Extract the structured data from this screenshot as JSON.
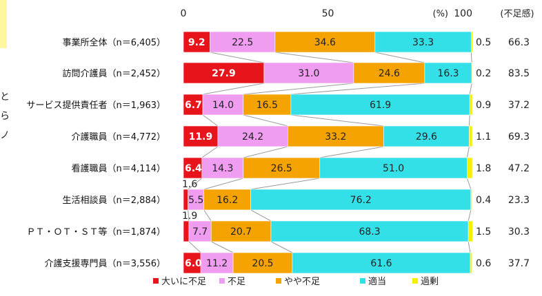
{
  "chart_data": {
    "type": "bar",
    "stacked": true,
    "orientation": "horizontal",
    "axis": {
      "ticks": [
        "0",
        "50",
        "100"
      ],
      "unit": "(%)",
      "range": [
        0,
        100
      ]
    },
    "extra_column_header": "(不足感)",
    "categories": [
      "事業所全体（n＝6,405）",
      "訪問介護員（n＝2,452）",
      "サービス提供責任者（n＝1,963）",
      "介護職員（n＝4,772）",
      "看護職員（n＝4,114）",
      "生活相談員（n＝2,884）",
      "ＰＴ・ＯＴ・ＳＴ等（n＝1,874）",
      "介護支援専門員（n＝3,556）"
    ],
    "series": [
      {
        "name": "大いに不足",
        "color": "#e8141c",
        "values": [
          9.2,
          27.9,
          6.7,
          11.9,
          6.4,
          1.6,
          1.9,
          6.0
        ]
      },
      {
        "name": "不足",
        "color": "#f09cf0",
        "values": [
          22.5,
          31.0,
          14.0,
          24.2,
          14.3,
          5.5,
          7.7,
          11.2
        ]
      },
      {
        "name": "やや不足",
        "color": "#f5a300",
        "values": [
          34.6,
          24.6,
          16.5,
          33.2,
          26.5,
          16.2,
          20.7,
          20.5
        ]
      },
      {
        "name": "適当",
        "color": "#33e0e8",
        "values": [
          33.3,
          16.3,
          61.9,
          29.6,
          51.0,
          76.2,
          68.3,
          61.6
        ]
      },
      {
        "name": "過剰",
        "color": "#f5f000",
        "values": [
          0.5,
          0.2,
          0.9,
          1.1,
          1.8,
          0.4,
          1.5,
          0.6
        ]
      }
    ],
    "shortage": [
      "66.3",
      "83.5",
      "37.2",
      "69.3",
      "47.2",
      "23.3",
      "30.3",
      "37.7"
    ],
    "labels": [
      [
        "9.2",
        "22.5",
        "34.6",
        "33.3",
        "0.5"
      ],
      [
        "27.9",
        "31.0",
        "24.6",
        "16.3",
        "0.2"
      ],
      [
        "6.7",
        "14.0",
        "16.5",
        "61.9",
        "0.9"
      ],
      [
        "11.9",
        "24.2",
        "33.2",
        "29.6",
        "1.1"
      ],
      [
        "6.4",
        "14.3",
        "26.5",
        "51.0",
        "1.8"
      ],
      [
        "1.6",
        "5.5",
        "16.2",
        "76.2",
        "0.4"
      ],
      [
        "1.9",
        "7.7",
        "20.7",
        "68.3",
        "1.5"
      ],
      [
        "6.0",
        "11.2",
        "20.5",
        "61.6",
        "0.6"
      ]
    ],
    "legend_position": "bottom",
    "connector_lines": true
  },
  "left_fragments": [
    "と",
    "ら",
    "ノ"
  ]
}
